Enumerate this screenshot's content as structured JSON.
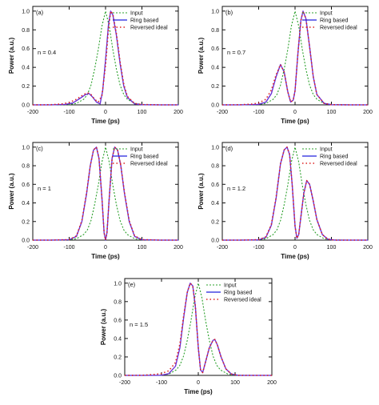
{
  "colors": {
    "input": "#2ca02c",
    "ring": "#2222dd",
    "ring_overlay": "#cc33cc",
    "reversed": "#dd2222",
    "axis": "#111111"
  },
  "chart_data": [
    {
      "type": "line",
      "panel_label": "(a)",
      "annotation": "n = 0.4",
      "xlabel": "Time (ps)",
      "ylabel": "Power (a.u.)",
      "xlim": [
        -200,
        200
      ],
      "ylim": [
        0,
        1.05
      ],
      "xticks": [
        "-200",
        "-100",
        "0",
        "100",
        "200"
      ],
      "yticks": [
        "0.0",
        "0.2",
        "0.4",
        "0.6",
        "0.8",
        "1.0"
      ],
      "legend": [
        "Input",
        "Ring based",
        "Reversed ideal"
      ],
      "legend_position": "top-right",
      "series": [
        {
          "name": "Input",
          "x": [
            -200,
            -150,
            -100,
            -80,
            -60,
            -50,
            -40,
            -30,
            -20,
            -10,
            0,
            10,
            20,
            30,
            40,
            50,
            60,
            80,
            100,
            150,
            200
          ],
          "y": [
            0,
            0,
            0.003,
            0.015,
            0.06,
            0.11,
            0.21,
            0.38,
            0.59,
            0.84,
            1.0,
            0.84,
            0.59,
            0.38,
            0.21,
            0.11,
            0.06,
            0.015,
            0.003,
            0,
            0
          ]
        },
        {
          "name": "Ring based",
          "x": [
            -200,
            -150,
            -110,
            -90,
            -70,
            -55,
            -45,
            -35,
            -25,
            -15,
            -8,
            0,
            8,
            14,
            20,
            30,
            40,
            50,
            60,
            80,
            100,
            150,
            200
          ],
          "y": [
            0,
            0,
            0.005,
            0.02,
            0.07,
            0.11,
            0.12,
            0.08,
            0.03,
            0.01,
            0.15,
            0.48,
            0.85,
            1.0,
            0.96,
            0.74,
            0.44,
            0.2,
            0.08,
            0.01,
            0.002,
            0,
            0
          ]
        },
        {
          "name": "Reversed ideal",
          "x": [
            -200,
            -150,
            -120,
            -100,
            -80,
            -60,
            -50,
            -40,
            -30,
            -20,
            -10,
            0,
            8,
            14,
            20,
            30,
            40,
            50,
            60,
            80,
            100,
            150,
            200
          ],
          "y": [
            0,
            0.002,
            0.01,
            0.025,
            0.06,
            0.11,
            0.13,
            0.11,
            0.06,
            0.03,
            0.1,
            0.42,
            0.8,
            1.0,
            0.97,
            0.76,
            0.46,
            0.22,
            0.09,
            0.015,
            0.003,
            0,
            0
          ]
        }
      ]
    },
    {
      "type": "line",
      "panel_label": "(b)",
      "annotation": "n = 0.7",
      "xlabel": "Time (ps)",
      "ylabel": "Power (a.u.)",
      "xlim": [
        -200,
        200
      ],
      "ylim": [
        0,
        1.05
      ],
      "xticks": [
        "-200",
        "-100",
        "0",
        "100",
        "200"
      ],
      "yticks": [
        "0.0",
        "0.2",
        "0.4",
        "0.6",
        "0.8",
        "1.0"
      ],
      "legend": [
        "Input",
        "Ring based",
        "Reversed ideal"
      ],
      "legend_position": "top-right",
      "series": [
        {
          "name": "Input",
          "x": [
            -200,
            -150,
            -100,
            -80,
            -60,
            -50,
            -40,
            -30,
            -20,
            -10,
            0,
            10,
            20,
            30,
            40,
            50,
            60,
            80,
            100,
            150,
            200
          ],
          "y": [
            0,
            0,
            0.003,
            0.015,
            0.06,
            0.11,
            0.21,
            0.38,
            0.59,
            0.84,
            1.0,
            0.84,
            0.59,
            0.38,
            0.21,
            0.11,
            0.06,
            0.015,
            0.003,
            0,
            0
          ]
        },
        {
          "name": "Ring based",
          "x": [
            -200,
            -150,
            -100,
            -80,
            -65,
            -52,
            -40,
            -30,
            -20,
            -12,
            -5,
            0,
            8,
            16,
            22,
            30,
            40,
            50,
            60,
            80,
            100,
            150,
            200
          ],
          "y": [
            0,
            0,
            0.005,
            0.03,
            0.12,
            0.3,
            0.43,
            0.35,
            0.14,
            0.03,
            0.05,
            0.15,
            0.55,
            0.9,
            1.0,
            0.92,
            0.62,
            0.3,
            0.11,
            0.015,
            0.002,
            0,
            0
          ]
        },
        {
          "name": "Reversed ideal",
          "x": [
            -200,
            -150,
            -120,
            -100,
            -80,
            -65,
            -52,
            -40,
            -30,
            -20,
            -12,
            -5,
            0,
            8,
            16,
            22,
            30,
            40,
            50,
            60,
            80,
            100,
            150,
            200
          ],
          "y": [
            0,
            0.002,
            0.008,
            0.02,
            0.06,
            0.16,
            0.32,
            0.43,
            0.35,
            0.14,
            0.03,
            0.05,
            0.15,
            0.55,
            0.9,
            1.0,
            0.92,
            0.62,
            0.3,
            0.11,
            0.015,
            0.002,
            0,
            0
          ]
        }
      ]
    },
    {
      "type": "line",
      "panel_label": "(c)",
      "annotation": "n = 1",
      "xlabel": "Time (ps)",
      "ylabel": "Power (a.u.)",
      "xlim": [
        -200,
        200
      ],
      "ylim": [
        0,
        1.05
      ],
      "xticks": [
        "-200",
        "-100",
        "0",
        "100",
        "200"
      ],
      "yticks": [
        "0.0",
        "0.2",
        "0.4",
        "0.6",
        "0.8",
        "1.0"
      ],
      "legend": [
        "Input",
        "Ring based",
        "Reversed ideal"
      ],
      "legend_position": "top-right",
      "series": [
        {
          "name": "Input",
          "x": [
            -200,
            -150,
            -100,
            -80,
            -60,
            -50,
            -40,
            -30,
            -20,
            -10,
            0,
            10,
            20,
            30,
            40,
            50,
            60,
            80,
            100,
            150,
            200
          ],
          "y": [
            0,
            0,
            0.003,
            0.015,
            0.06,
            0.11,
            0.21,
            0.38,
            0.59,
            0.84,
            1.0,
            0.84,
            0.59,
            0.38,
            0.21,
            0.11,
            0.06,
            0.015,
            0.003,
            0,
            0
          ]
        },
        {
          "name": "Ring based",
          "x": [
            -200,
            -150,
            -100,
            -80,
            -65,
            -52,
            -42,
            -33,
            -25,
            -18,
            -10,
            -4,
            0,
            4,
            10,
            18,
            25,
            33,
            42,
            52,
            65,
            80,
            100,
            150,
            200
          ],
          "y": [
            0,
            0,
            0.004,
            0.04,
            0.2,
            0.5,
            0.8,
            0.97,
            1.0,
            0.88,
            0.45,
            0.08,
            0,
            0.08,
            0.45,
            0.88,
            1.0,
            0.97,
            0.8,
            0.5,
            0.2,
            0.04,
            0.004,
            0,
            0
          ]
        },
        {
          "name": "Reversed ideal",
          "x": [
            -200,
            -150,
            -100,
            -80,
            -65,
            -52,
            -42,
            -33,
            -25,
            -18,
            -10,
            -4,
            0,
            4,
            10,
            18,
            25,
            33,
            42,
            52,
            65,
            80,
            100,
            150,
            200
          ],
          "y": [
            0,
            0,
            0.005,
            0.045,
            0.21,
            0.51,
            0.8,
            0.97,
            1.0,
            0.88,
            0.45,
            0.08,
            0,
            0.08,
            0.45,
            0.88,
            1.0,
            0.97,
            0.8,
            0.51,
            0.21,
            0.045,
            0.005,
            0,
            0
          ]
        }
      ]
    },
    {
      "type": "line",
      "panel_label": "(d)",
      "annotation": "n = 1.2",
      "xlabel": "Time (ps)",
      "ylabel": "Power (a.u.)",
      "xlim": [
        -200,
        200
      ],
      "ylim": [
        0,
        1.05
      ],
      "xticks": [
        "-200",
        "-100",
        "0",
        "100",
        "200"
      ],
      "yticks": [
        "0.0",
        "0.2",
        "0.4",
        "0.6",
        "0.8",
        "1.0"
      ],
      "legend": [
        "Input",
        "Ring based",
        "Reversed ideal"
      ],
      "legend_position": "top-right",
      "series": [
        {
          "name": "Input",
          "x": [
            -200,
            -150,
            -100,
            -80,
            -60,
            -50,
            -40,
            -30,
            -20,
            -10,
            0,
            10,
            20,
            30,
            40,
            50,
            60,
            80,
            100,
            150,
            200
          ],
          "y": [
            0,
            0,
            0.003,
            0.015,
            0.06,
            0.11,
            0.21,
            0.38,
            0.59,
            0.84,
            1.0,
            0.84,
            0.59,
            0.38,
            0.21,
            0.11,
            0.06,
            0.015,
            0.003,
            0,
            0
          ]
        },
        {
          "name": "Ring based",
          "x": [
            -200,
            -150,
            -100,
            -80,
            -65,
            -52,
            -40,
            -30,
            -22,
            -15,
            -8,
            0,
            5,
            10,
            16,
            24,
            32,
            40,
            50,
            60,
            75,
            90,
            110,
            150,
            200
          ],
          "y": [
            0,
            0,
            0.003,
            0.03,
            0.16,
            0.45,
            0.82,
            0.97,
            1.0,
            0.92,
            0.6,
            0.15,
            0.02,
            0.06,
            0.25,
            0.5,
            0.64,
            0.6,
            0.42,
            0.22,
            0.06,
            0.01,
            0,
            0,
            0
          ]
        },
        {
          "name": "Reversed ideal",
          "x": [
            -200,
            -150,
            -100,
            -80,
            -65,
            -52,
            -40,
            -30,
            -22,
            -15,
            -8,
            0,
            5,
            10,
            16,
            24,
            32,
            40,
            50,
            60,
            75,
            90,
            110,
            150,
            200
          ],
          "y": [
            0,
            0,
            0.004,
            0.035,
            0.17,
            0.46,
            0.82,
            0.97,
            1.0,
            0.92,
            0.6,
            0.15,
            0.02,
            0.06,
            0.25,
            0.5,
            0.64,
            0.6,
            0.42,
            0.22,
            0.06,
            0.01,
            0,
            0,
            0
          ]
        }
      ]
    },
    {
      "type": "line",
      "panel_label": "(e)",
      "annotation": "n = 1.5",
      "xlabel": "Time (ps)",
      "ylabel": "Power (a.u.)",
      "xlim": [
        -200,
        200
      ],
      "ylim": [
        0,
        1.05
      ],
      "xticks": [
        "-200",
        "-100",
        "0",
        "100",
        "200"
      ],
      "yticks": [
        "0.0",
        "0.2",
        "0.4",
        "0.6",
        "0.8",
        "1.0"
      ],
      "legend": [
        "Input",
        "Ring based",
        "Reversed ideal"
      ],
      "legend_position": "top-right",
      "series": [
        {
          "name": "Input",
          "x": [
            -200,
            -150,
            -100,
            -80,
            -60,
            -50,
            -40,
            -30,
            -20,
            -10,
            0,
            10,
            20,
            30,
            40,
            50,
            60,
            80,
            100,
            150,
            200
          ],
          "y": [
            0,
            0,
            0.003,
            0.015,
            0.06,
            0.11,
            0.21,
            0.38,
            0.59,
            0.84,
            1.0,
            0.84,
            0.59,
            0.38,
            0.21,
            0.11,
            0.06,
            0.015,
            0.003,
            0,
            0
          ]
        },
        {
          "name": "Ring based",
          "x": [
            -200,
            -150,
            -100,
            -80,
            -62,
            -50,
            -40,
            -30,
            -22,
            -15,
            -8,
            0,
            6,
            12,
            20,
            30,
            40,
            45,
            52,
            62,
            75,
            90,
            110,
            150,
            200
          ],
          "y": [
            0,
            0,
            0.002,
            0.02,
            0.1,
            0.3,
            0.62,
            0.9,
            1.0,
            0.97,
            0.75,
            0.3,
            0.06,
            0.03,
            0.15,
            0.3,
            0.38,
            0.39,
            0.33,
            0.2,
            0.07,
            0.015,
            0,
            0,
            0
          ]
        },
        {
          "name": "Reversed ideal",
          "x": [
            -200,
            -150,
            -120,
            -100,
            -80,
            -62,
            -50,
            -40,
            -30,
            -22,
            -15,
            -8,
            0,
            6,
            12,
            20,
            30,
            40,
            45,
            52,
            62,
            75,
            90,
            110,
            150,
            200
          ],
          "y": [
            0,
            0.002,
            0.01,
            0.02,
            0.05,
            0.14,
            0.34,
            0.64,
            0.9,
            1.0,
            0.97,
            0.75,
            0.3,
            0.06,
            0.03,
            0.15,
            0.3,
            0.38,
            0.39,
            0.33,
            0.2,
            0.07,
            0.015,
            0,
            0,
            0
          ]
        }
      ]
    }
  ]
}
